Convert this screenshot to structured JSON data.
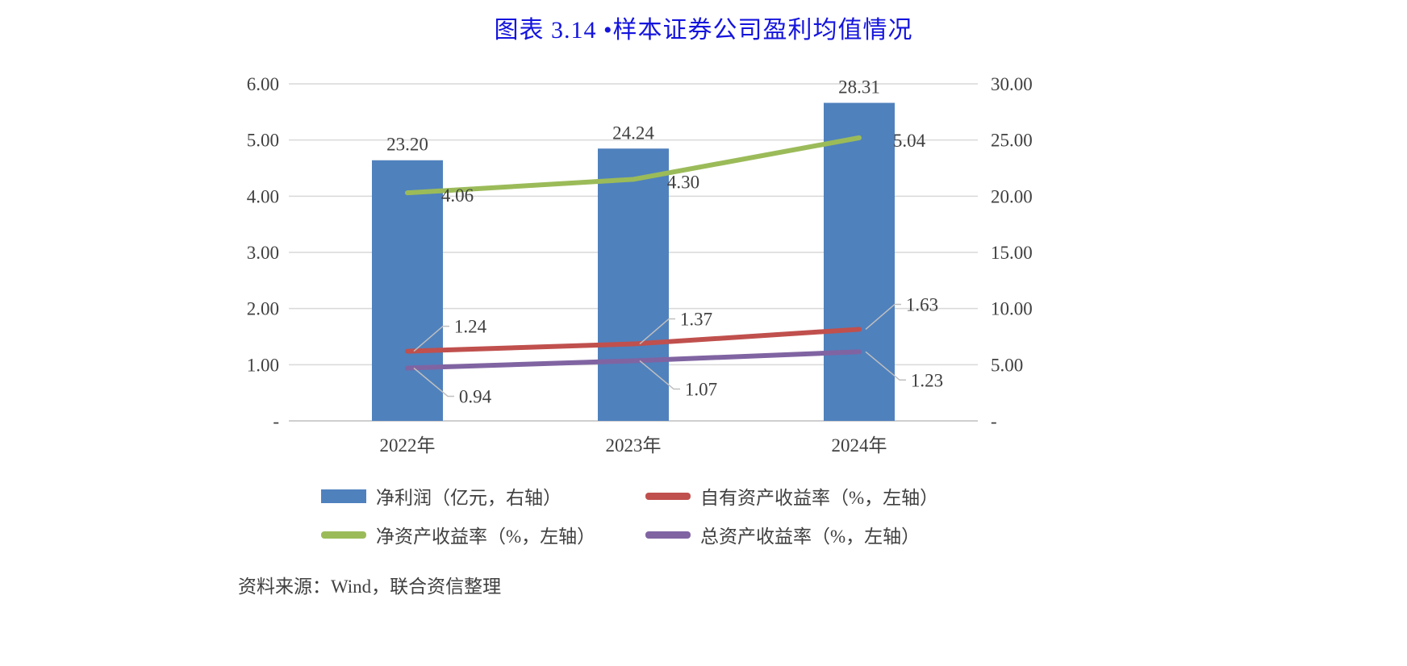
{
  "title": {
    "text": "图表 3.14 •样本证券公司盈利均值情况",
    "color": "#1414DD"
  },
  "source": "资料来源：Wind，联合资信整理",
  "colors": {
    "text": "#404040",
    "grid": "#D9D9D9",
    "grid_strong": "#BFBFBF",
    "leader": "#BFBFBF",
    "background": "#FFFFFF"
  },
  "chart_data": {
    "type": "combo",
    "categories": [
      "2022年",
      "2023年",
      "2024年"
    ],
    "series": [
      {
        "name": "净利润（亿元，右轴）",
        "type": "bar",
        "axis": "right",
        "color": "#4F81BD",
        "values": [
          23.2,
          24.24,
          28.31
        ],
        "labels": [
          "23.20",
          "24.24",
          "28.31"
        ]
      },
      {
        "name": "自有资产收益率（%，左轴）",
        "type": "line",
        "axis": "left",
        "color": "#C0504D",
        "values": [
          1.24,
          1.37,
          1.63
        ],
        "labels": [
          "1.24",
          "1.37",
          "1.63"
        ]
      },
      {
        "name": "净资产收益率（%，左轴）",
        "type": "line",
        "axis": "left",
        "color": "#9BBB59",
        "values": [
          4.06,
          4.3,
          5.04
        ],
        "labels": [
          "4.06",
          "4.30",
          "5.04"
        ]
      },
      {
        "name": "总资产收益率（%，左轴）",
        "type": "line",
        "axis": "left",
        "color": "#8064A2",
        "values": [
          0.94,
          1.07,
          1.23
        ],
        "labels": [
          "0.94",
          "1.07",
          "1.23"
        ]
      }
    ],
    "left_axis": {
      "min": 0,
      "max": 6,
      "step": 1,
      "ticks": [
        "-",
        "1.00",
        "2.00",
        "3.00",
        "4.00",
        "5.00",
        "6.00"
      ]
    },
    "right_axis": {
      "min": 0,
      "max": 30,
      "step": 5,
      "ticks": [
        "-",
        "5.00",
        "10.00",
        "15.00",
        "20.00",
        "25.00",
        "30.00"
      ]
    },
    "grid": true,
    "legend_position": "bottom"
  },
  "legend": {
    "items": [
      {
        "label": "净利润（亿元，右轴）",
        "color": "#4F81BD",
        "shape": "bar"
      },
      {
        "label": "自有资产收益率（%，左轴）",
        "color": "#C0504D",
        "shape": "line"
      },
      {
        "label": "净资产收益率（%，左轴）",
        "color": "#9BBB59",
        "shape": "line"
      },
      {
        "label": "总资产收益率（%，左轴）",
        "color": "#8064A2",
        "shape": "line"
      }
    ]
  }
}
